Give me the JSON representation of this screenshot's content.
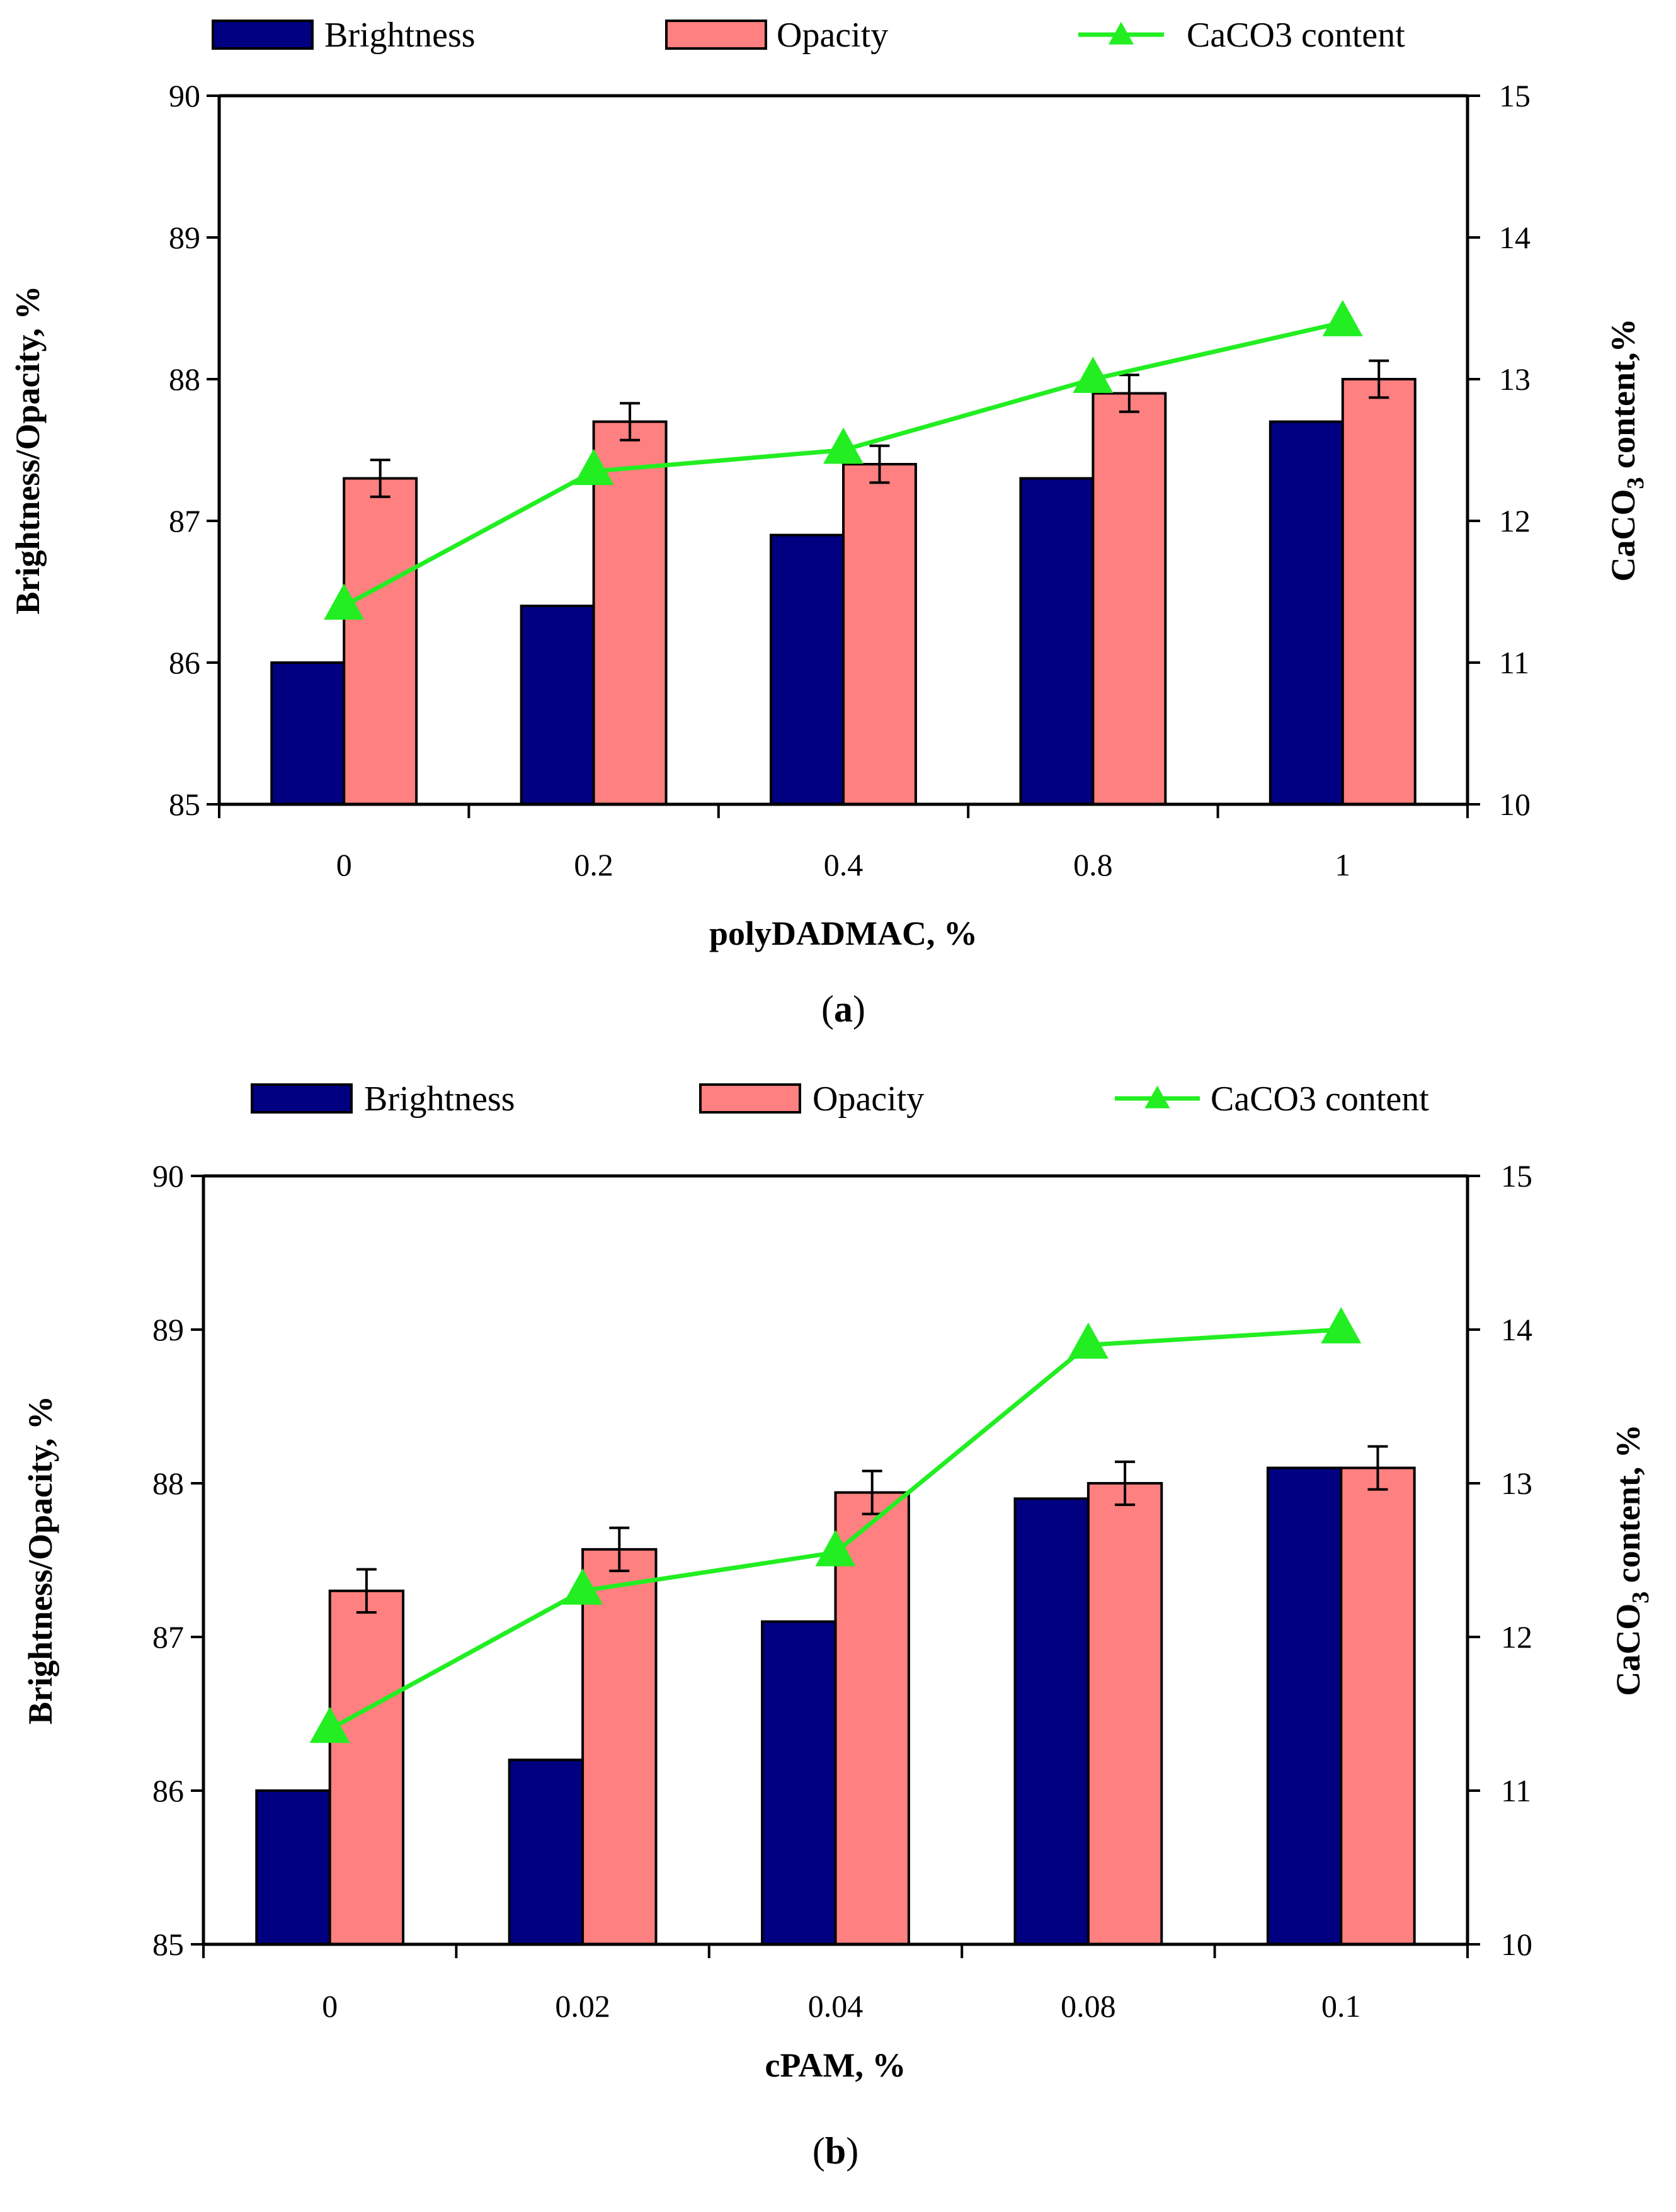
{
  "colors": {
    "brightness": "#000080",
    "opacity": "#ff8080",
    "caco3": "#22ee22"
  },
  "chart_data": [
    {
      "type": "bar",
      "panel_label": "a",
      "categories": [
        "0",
        "0.2",
        "0.4",
        "0.8",
        "1"
      ],
      "xlabel": "polyDADMAC, %",
      "ylabel": "Brightness/Opacity, %",
      "ylim": [
        85,
        90
      ],
      "yticks": [
        "85",
        "86",
        "87",
        "88",
        "89",
        "90"
      ],
      "y2label_parts": [
        "CaCO",
        "3",
        " content,%"
      ],
      "y2lim": [
        10,
        15
      ],
      "y2ticks": [
        "10",
        "11",
        "12",
        "13",
        "14",
        "15"
      ],
      "legend": [
        "Brightness",
        "Opacity",
        "CaCO3 content"
      ],
      "series": [
        {
          "name": "Brightness",
          "axis": "left",
          "values": [
            86.0,
            86.4,
            86.9,
            87.3,
            87.7
          ]
        },
        {
          "name": "Opacity",
          "axis": "left",
          "values": [
            87.3,
            87.7,
            87.4,
            87.9,
            88.0
          ],
          "error": [
            0.13,
            0.13,
            0.13,
            0.13,
            0.13
          ]
        },
        {
          "name": "CaCO3 content",
          "axis": "right",
          "type": "line",
          "values": [
            11.4,
            12.35,
            12.5,
            13.0,
            13.4
          ]
        }
      ]
    },
    {
      "type": "bar",
      "panel_label": "b",
      "categories": [
        "0",
        "0.02",
        "0.04",
        "0.08",
        "0.1"
      ],
      "xlabel": "cPAM, %",
      "ylabel": "Brightness/Opacity, %",
      "ylim": [
        85,
        90
      ],
      "yticks": [
        "85",
        "86",
        "87",
        "88",
        "89",
        "90"
      ],
      "y2label_parts": [
        "CaCO",
        "3",
        " content, %"
      ],
      "y2lim": [
        10,
        15
      ],
      "y2ticks": [
        "10",
        "11",
        "12",
        "13",
        "14",
        "15"
      ],
      "legend": [
        "Brightness",
        "Opacity",
        "CaCO3 content"
      ],
      "series": [
        {
          "name": "Brightness",
          "axis": "left",
          "values": [
            86.0,
            86.2,
            87.1,
            87.9,
            88.1
          ]
        },
        {
          "name": "Opacity",
          "axis": "left",
          "values": [
            87.3,
            87.57,
            87.94,
            88.0,
            88.1
          ],
          "error": [
            0.14,
            0.14,
            0.14,
            0.14,
            0.14
          ]
        },
        {
          "name": "CaCO3 content",
          "axis": "right",
          "type": "line",
          "values": [
            11.4,
            12.3,
            12.55,
            13.9,
            14.0
          ]
        }
      ]
    }
  ]
}
